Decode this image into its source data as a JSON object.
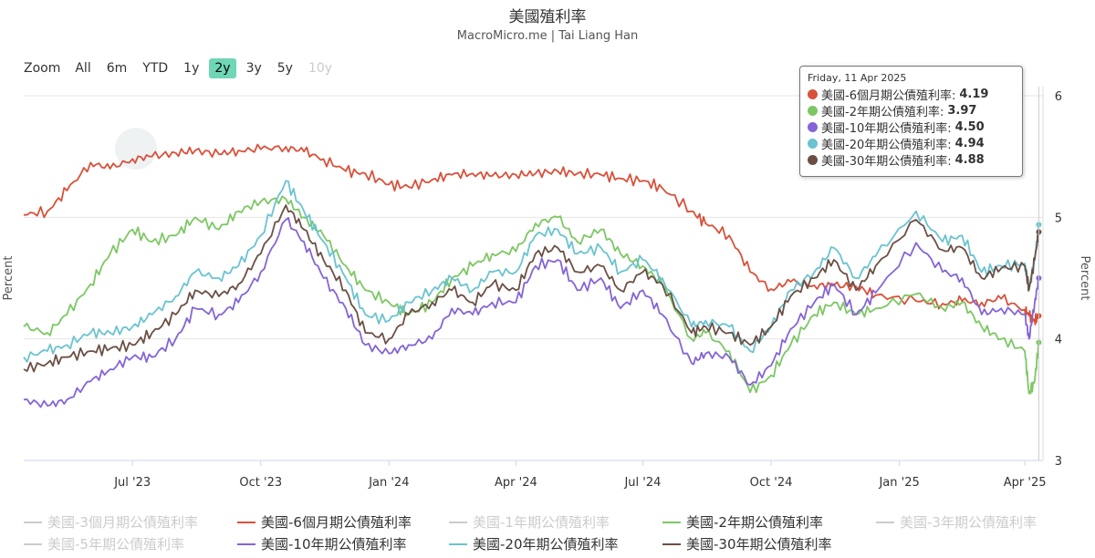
{
  "chart_data": {
    "type": "line",
    "title": "美國殖利率",
    "subtitle": "MacroMicro.me | Tai Liang Han",
    "ylabel_left": "Percent",
    "ylabel_right": "Percent",
    "ylim": [
      3,
      6
    ],
    "yticks": [
      "3",
      "4",
      "5",
      "6"
    ],
    "xlim": [
      "2023-04-14",
      "2025-04-14"
    ],
    "xticks": [
      {
        "label": "Jul '23",
        "date": "2023-07-01"
      },
      {
        "label": "Oct '23",
        "date": "2023-10-01"
      },
      {
        "label": "Jan '24",
        "date": "2024-01-01"
      },
      {
        "label": "Apr '24",
        "date": "2024-04-01"
      },
      {
        "label": "Jul '24",
        "date": "2024-07-01"
      },
      {
        "label": "Oct '24",
        "date": "2024-10-01"
      },
      {
        "label": "Jan '25",
        "date": "2025-01-01"
      },
      {
        "label": "Apr '25",
        "date": "2025-04-01"
      }
    ],
    "x": [
      "2023-04-14",
      "2023-05-01",
      "2023-05-15",
      "2023-06-01",
      "2023-06-15",
      "2023-07-01",
      "2023-07-15",
      "2023-08-01",
      "2023-08-15",
      "2023-09-01",
      "2023-09-15",
      "2023-10-01",
      "2023-10-19",
      "2023-11-01",
      "2023-11-15",
      "2023-12-01",
      "2023-12-15",
      "2024-01-01",
      "2024-01-15",
      "2024-02-01",
      "2024-02-15",
      "2024-03-01",
      "2024-03-15",
      "2024-04-01",
      "2024-04-15",
      "2024-05-01",
      "2024-05-15",
      "2024-06-01",
      "2024-06-15",
      "2024-07-01",
      "2024-07-15",
      "2024-08-05",
      "2024-08-15",
      "2024-09-01",
      "2024-09-16",
      "2024-10-01",
      "2024-10-15",
      "2024-11-01",
      "2024-11-15",
      "2024-12-01",
      "2024-12-15",
      "2025-01-13",
      "2025-02-01",
      "2025-02-15",
      "2025-03-01",
      "2025-03-15",
      "2025-04-01",
      "2025-04-04",
      "2025-04-08",
      "2025-04-11"
    ],
    "series": [
      {
        "name": "美國-6個月期公債殖利率",
        "color": "#d9503a",
        "values": [
          5.02,
          5.05,
          5.22,
          5.45,
          5.4,
          5.48,
          5.5,
          5.53,
          5.55,
          5.52,
          5.55,
          5.56,
          5.58,
          5.54,
          5.48,
          5.38,
          5.36,
          5.27,
          5.25,
          5.31,
          5.35,
          5.36,
          5.34,
          5.35,
          5.36,
          5.38,
          5.36,
          5.35,
          5.32,
          5.3,
          5.24,
          5.05,
          4.95,
          4.85,
          4.55,
          4.41,
          4.47,
          4.44,
          4.44,
          4.43,
          4.36,
          4.31,
          4.29,
          4.31,
          4.3,
          4.33,
          4.24,
          4.19,
          4.15,
          4.19
        ]
      },
      {
        "name": "美國-2年期公債殖利率",
        "color": "#7cc763",
        "values": [
          4.1,
          4.05,
          4.2,
          4.45,
          4.7,
          4.9,
          4.8,
          4.85,
          5.0,
          4.9,
          5.05,
          5.13,
          5.15,
          5.0,
          4.85,
          4.6,
          4.4,
          4.3,
          4.2,
          4.3,
          4.5,
          4.6,
          4.7,
          4.72,
          4.95,
          5.0,
          4.8,
          4.9,
          4.7,
          4.6,
          4.45,
          4.0,
          4.05,
          3.9,
          3.56,
          3.7,
          3.95,
          4.2,
          4.3,
          4.2,
          4.25,
          4.37,
          4.25,
          4.3,
          4.1,
          4.0,
          3.9,
          3.55,
          3.65,
          3.97
        ]
      },
      {
        "name": "美國-10年期公債殖利率",
        "color": "#8464d6",
        "values": [
          3.5,
          3.45,
          3.5,
          3.65,
          3.75,
          3.85,
          3.85,
          4.0,
          4.25,
          4.2,
          4.3,
          4.55,
          4.98,
          4.8,
          4.5,
          4.25,
          3.95,
          3.88,
          3.95,
          4.0,
          4.25,
          4.2,
          4.3,
          4.3,
          4.6,
          4.65,
          4.4,
          4.5,
          4.25,
          4.4,
          4.2,
          3.8,
          3.88,
          3.85,
          3.62,
          3.78,
          4.08,
          4.3,
          4.45,
          4.2,
          4.38,
          4.79,
          4.55,
          4.5,
          4.2,
          4.25,
          4.2,
          4.0,
          4.29,
          4.5
        ]
      },
      {
        "name": "美國-20年期公債殖利率",
        "color": "#6ac3cf",
        "values": [
          3.85,
          3.9,
          3.95,
          4.05,
          4.05,
          4.1,
          4.2,
          4.35,
          4.55,
          4.5,
          4.6,
          4.85,
          5.3,
          5.05,
          4.8,
          4.5,
          4.2,
          4.15,
          4.3,
          4.4,
          4.5,
          4.4,
          4.55,
          4.55,
          4.85,
          4.9,
          4.7,
          4.75,
          4.55,
          4.65,
          4.5,
          4.1,
          4.15,
          4.1,
          3.9,
          4.1,
          4.4,
          4.55,
          4.75,
          4.5,
          4.68,
          5.05,
          4.8,
          4.85,
          4.55,
          4.6,
          4.62,
          4.4,
          4.65,
          4.94
        ]
      },
      {
        "name": "美國-30年期公債殖利率",
        "color": "#6b4f45",
        "values": [
          3.75,
          3.8,
          3.85,
          3.9,
          3.92,
          3.95,
          4.05,
          4.2,
          4.4,
          4.35,
          4.45,
          4.7,
          5.1,
          4.9,
          4.65,
          4.4,
          4.05,
          4.0,
          4.2,
          4.3,
          4.4,
          4.3,
          4.45,
          4.4,
          4.7,
          4.75,
          4.55,
          4.6,
          4.4,
          4.55,
          4.45,
          4.05,
          4.1,
          4.05,
          3.95,
          4.1,
          4.35,
          4.5,
          4.65,
          4.4,
          4.6,
          4.98,
          4.73,
          4.75,
          4.5,
          4.58,
          4.6,
          4.41,
          4.65,
          4.88
        ]
      }
    ],
    "legend_position": "bottom",
    "grid": true
  },
  "range_selector": {
    "zoom_label": "Zoom",
    "buttons": [
      {
        "label": "All",
        "state": "normal"
      },
      {
        "label": "6m",
        "state": "normal"
      },
      {
        "label": "YTD",
        "state": "normal"
      },
      {
        "label": "1y",
        "state": "normal"
      },
      {
        "label": "2y",
        "state": "active"
      },
      {
        "label": "3y",
        "state": "normal"
      },
      {
        "label": "5y",
        "state": "normal"
      },
      {
        "label": "10y",
        "state": "disabled"
      }
    ]
  },
  "legend": [
    {
      "label": "美國-3個月期公債殖利率",
      "color": "#cccccc",
      "visible": false
    },
    {
      "label": "美國-6個月期公債殖利率",
      "color": "#d9503a",
      "visible": true
    },
    {
      "label": "美國-1年期公債殖利率",
      "color": "#cccccc",
      "visible": false
    },
    {
      "label": "美國-2年期公債殖利率",
      "color": "#7cc763",
      "visible": true
    },
    {
      "label": "美國-3年期公債殖利率",
      "color": "#cccccc",
      "visible": false
    },
    {
      "label": "美國-5年期公債殖利率",
      "color": "#cccccc",
      "visible": false
    },
    {
      "label": "美國-10年期公債殖利率",
      "color": "#8464d6",
      "visible": true
    },
    {
      "label": "美國-20年期公債殖利率",
      "color": "#6ac3cf",
      "visible": true
    },
    {
      "label": "美國-30年期公債殖利率",
      "color": "#6b4f45",
      "visible": true
    }
  ],
  "tooltip": {
    "date": "Friday, 11 Apr 2025",
    "rows": [
      {
        "label": "美國-6個月期公債殖利率:",
        "value": "4.19",
        "color": "#d9503a"
      },
      {
        "label": "美國-2年期公債殖利率:",
        "value": "3.97",
        "color": "#7cc763"
      },
      {
        "label": "美國-10年期公債殖利率:",
        "value": "4.50",
        "color": "#8464d6"
      },
      {
        "label": "美國-20年期公債殖利率:",
        "value": "4.94",
        "color": "#6ac3cf"
      },
      {
        "label": "美國-30年期公債殖利率:",
        "value": "4.88",
        "color": "#6b4f45"
      }
    ]
  },
  "watermark": "MacroMicro"
}
